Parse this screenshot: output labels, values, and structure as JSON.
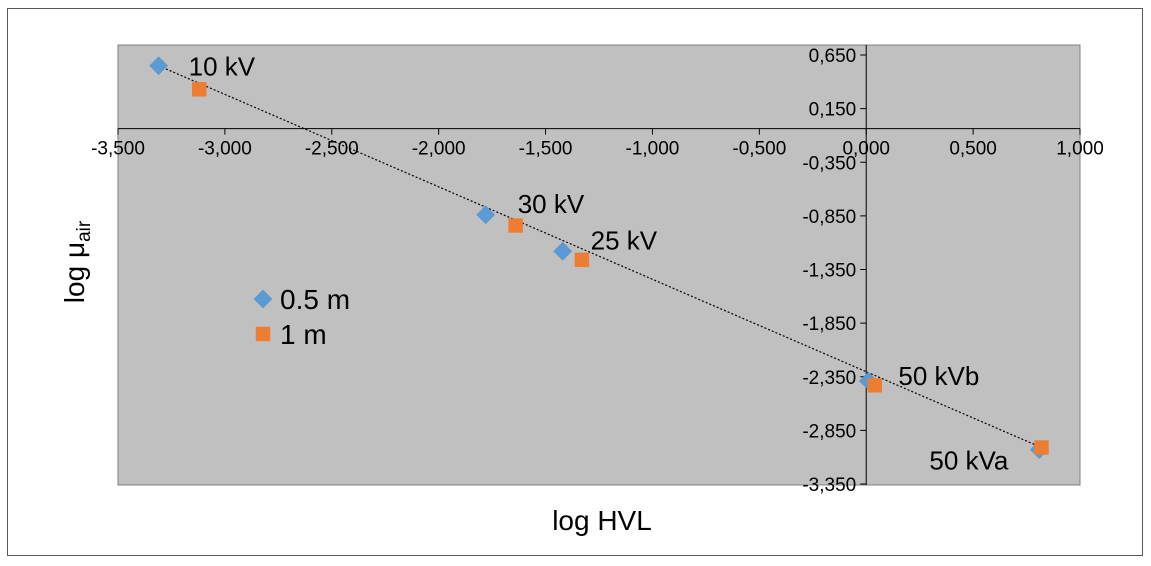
{
  "chart_data": {
    "type": "scatter",
    "title": "",
    "xlabel": "log HVL",
    "ylabel_main": "log μ",
    "ylabel_sub": "air",
    "xlim": [
      -3.5,
      1.0
    ],
    "ylim": [
      -3.35,
      0.65
    ],
    "x_ticks": [
      -3.5,
      -3.0,
      -2.5,
      -2.0,
      -1.5,
      -1.0,
      -0.5,
      0.0,
      0.5,
      1.0
    ],
    "x_tick_labels": [
      "-3,500",
      "-3,000",
      "-2,500",
      "-2,000",
      "-1,500",
      "-1,000",
      "-0,500",
      "0,000",
      "0,500",
      "1,000"
    ],
    "y_ticks": [
      0.65,
      0.15,
      -0.35,
      -0.85,
      -1.35,
      -1.85,
      -2.35,
      -2.85,
      -3.35
    ],
    "y_tick_labels": [
      "0,650",
      "0,150",
      "-0,350",
      "-0,850",
      "-1,350",
      "-1,850",
      "-2,350",
      "-2,850",
      "-3,350"
    ],
    "grid": false,
    "plot_background": "#c0c0c0",
    "legend_position": "center-left",
    "series": [
      {
        "name": "0.5 m",
        "marker": "diamond",
        "color": "#5b9bd5",
        "x": [
          -3.31,
          -1.78,
          -1.42,
          0.01,
          0.81
        ],
        "y": [
          0.55,
          -0.84,
          -1.18,
          -2.39,
          -3.03
        ]
      },
      {
        "name": "1 m",
        "marker": "square",
        "color": "#ed7d31",
        "x": [
          -3.12,
          -1.64,
          -1.33,
          0.04,
          0.82
        ],
        "y": [
          0.33,
          -0.94,
          -1.26,
          -2.43,
          -3.01
        ]
      }
    ],
    "trendline": {
      "style": "dotted",
      "color": "#000000",
      "x": [
        -3.31,
        0.82
      ],
      "y": [
        0.55,
        -3.01
      ]
    },
    "annotations": [
      {
        "text": "10 kV",
        "x": -3.31,
        "y": 0.55
      },
      {
        "text": "30 kV",
        "x": -1.78,
        "y": -0.84
      },
      {
        "text": "25 kV",
        "x": -1.42,
        "y": -1.18
      },
      {
        "text": "50 kVb",
        "x": 0.01,
        "y": -2.39
      },
      {
        "text": "50 kVa",
        "x": 0.81,
        "y": -3.03
      }
    ]
  }
}
